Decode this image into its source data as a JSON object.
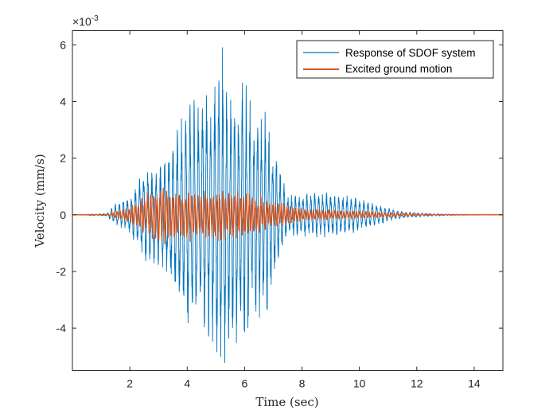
{
  "chart_data": {
    "type": "line",
    "xlabel": "Time (sec)",
    "ylabel": "Velocity (mm/s)",
    "xlim": [
      0,
      15
    ],
    "ylim": [
      -0.0055,
      0.0065
    ],
    "x_ticks": [
      "2",
      "4",
      "6",
      "8",
      "10",
      "12",
      "14"
    ],
    "x_tick_values": [
      2,
      4,
      6,
      8,
      10,
      12,
      14
    ],
    "y_ticks": [
      "-4",
      "-2",
      "0",
      "2",
      "4",
      "6"
    ],
    "y_tick_values": [
      -0.004,
      -0.002,
      0,
      0.002,
      0.004,
      0.006
    ],
    "y_exponent": "×10",
    "y_exponent_power": "-3",
    "grid": false,
    "legend_position": "top-right",
    "series": [
      {
        "name": "Response of SDOF system",
        "color": "#0072BD",
        "envelope_x": [
          0,
          1.2,
          1.5,
          2.0,
          2.6,
          3.0,
          3.5,
          4.0,
          4.3,
          4.8,
          5.2,
          5.5,
          6.0,
          6.3,
          6.8,
          7.2,
          7.5,
          8.0,
          8.5,
          9.0,
          9.5,
          10.0,
          10.5,
          11.0,
          11.5,
          12.0,
          12.5,
          13.0,
          14.0,
          15.0
        ],
        "envelope_y": [
          0,
          5e-05,
          0.0004,
          0.0007,
          0.0018,
          0.0018,
          0.0025,
          0.0042,
          0.0042,
          0.0045,
          0.0059,
          0.0045,
          0.0048,
          0.0037,
          0.0037,
          0.0017,
          0.0007,
          0.0008,
          0.0008,
          0.0008,
          0.0007,
          0.0006,
          0.0004,
          0.00025,
          0.00012,
          8e-05,
          5e-05,
          3e-05,
          1e-05,
          0
        ],
        "peak_max": 0.0059,
        "peak_min": -0.005
      },
      {
        "name": "Excited ground motion",
        "color": "#D95319",
        "envelope_x": [
          0,
          1.2,
          1.5,
          2.0,
          2.6,
          3.0,
          3.5,
          4.0,
          4.5,
          5.0,
          5.5,
          6.0,
          6.5,
          7.0,
          7.5,
          8.0,
          9.0,
          10.0,
          11.0,
          12.0,
          13.0,
          15.0
        ],
        "envelope_y": [
          0,
          2e-05,
          0.00015,
          0.0003,
          0.0008,
          0.0012,
          0.0011,
          0.001,
          0.0009,
          0.001,
          0.0009,
          0.0009,
          0.0007,
          0.0005,
          0.0004,
          0.00025,
          0.0002,
          0.00015,
          0.0001,
          4e-05,
          1e-05,
          0
        ]
      }
    ]
  }
}
